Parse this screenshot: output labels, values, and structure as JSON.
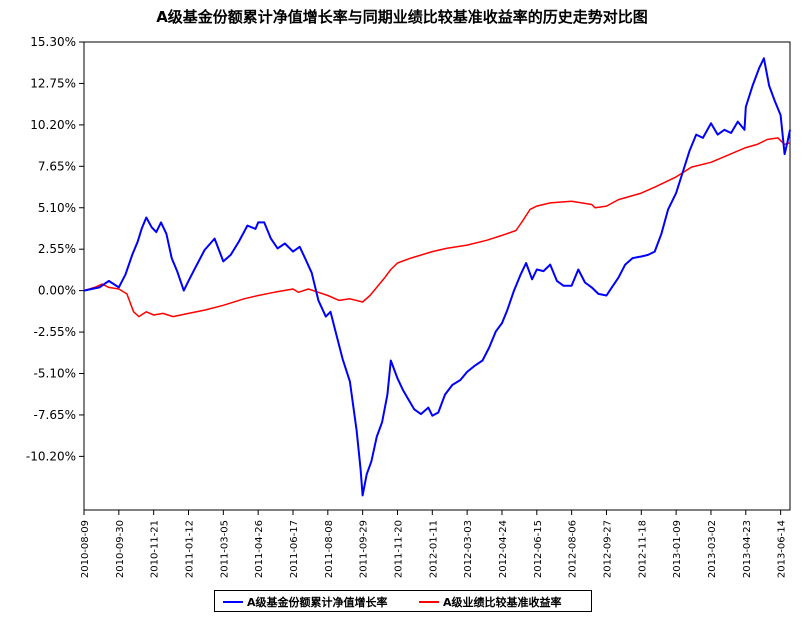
{
  "chart_data": {
    "type": "line",
    "title": "A级基金份额累计净值增长率与同期业绩比较基准收益率的历史走势对比图",
    "xlabel": "",
    "ylabel": "",
    "ylim": [
      -13.5,
      15.3
    ],
    "y_ticks": [
      "15.30%",
      "12.75%",
      "10.20%",
      "7.65%",
      "5.10%",
      "2.55%",
      "0.00%",
      "-2.55%",
      "-5.10%",
      "-7.65%",
      "-10.20%"
    ],
    "y_tick_values": [
      15.3,
      12.75,
      10.2,
      7.65,
      5.1,
      2.55,
      0,
      -2.55,
      -5.1,
      -7.65,
      -10.2
    ],
    "x_range": [
      "2010-08-09",
      "2013-06-28"
    ],
    "x_ticks": [
      "2010-08-09",
      "2010-09-30",
      "2010-11-21",
      "2011-01-12",
      "2011-03-05",
      "2011-04-26",
      "2011-06-17",
      "2011-08-08",
      "2011-09-29",
      "2011-11-20",
      "2012-01-11",
      "2012-03-03",
      "2012-04-24",
      "2012-06-15",
      "2012-08-06",
      "2012-09-27",
      "2012-11-18",
      "2013-01-09",
      "2013-03-02",
      "2013-04-23",
      "2013-06-14"
    ],
    "grid": false,
    "legend_position": "bottom",
    "series": [
      {
        "name": "A级基金份额累计净值增长率",
        "color": "#0000ff",
        "points": [
          [
            "2010-08-09",
            0.0
          ],
          [
            "2010-09-01",
            0.2
          ],
          [
            "2010-09-15",
            0.6
          ],
          [
            "2010-09-30",
            0.2
          ],
          [
            "2010-10-10",
            1.0
          ],
          [
            "2010-10-20",
            2.2
          ],
          [
            "2010-10-28",
            3.0
          ],
          [
            "2010-11-03",
            3.8
          ],
          [
            "2010-11-10",
            4.5
          ],
          [
            "2010-11-18",
            3.9
          ],
          [
            "2010-11-25",
            3.6
          ],
          [
            "2010-12-02",
            4.2
          ],
          [
            "2010-12-10",
            3.5
          ],
          [
            "2010-12-18",
            2.0
          ],
          [
            "2010-12-26",
            1.2
          ],
          [
            "2011-01-05",
            0.0
          ],
          [
            "2011-01-12",
            0.6
          ],
          [
            "2011-01-22",
            1.4
          ],
          [
            "2011-02-05",
            2.5
          ],
          [
            "2011-02-20",
            3.2
          ],
          [
            "2011-03-05",
            1.8
          ],
          [
            "2011-03-16",
            2.2
          ],
          [
            "2011-03-28",
            3.0
          ],
          [
            "2011-04-10",
            4.0
          ],
          [
            "2011-04-22",
            3.8
          ],
          [
            "2011-04-26",
            4.2
          ],
          [
            "2011-05-05",
            4.2
          ],
          [
            "2011-05-15",
            3.2
          ],
          [
            "2011-05-25",
            2.6
          ],
          [
            "2011-06-05",
            2.9
          ],
          [
            "2011-06-17",
            2.4
          ],
          [
            "2011-06-27",
            2.7
          ],
          [
            "2011-07-05",
            2.0
          ],
          [
            "2011-07-15",
            1.1
          ],
          [
            "2011-07-25",
            -0.6
          ],
          [
            "2011-08-05",
            -1.6
          ],
          [
            "2011-08-12",
            -1.3
          ],
          [
            "2011-08-20",
            -2.6
          ],
          [
            "2011-08-30",
            -4.2
          ],
          [
            "2011-09-10",
            -5.6
          ],
          [
            "2011-09-20",
            -8.6
          ],
          [
            "2011-09-26",
            -11.0
          ],
          [
            "2011-09-29",
            -12.6
          ],
          [
            "2011-10-05",
            -11.3
          ],
          [
            "2011-10-12",
            -10.5
          ],
          [
            "2011-10-20",
            -9.0
          ],
          [
            "2011-10-28",
            -8.1
          ],
          [
            "2011-11-05",
            -6.4
          ],
          [
            "2011-11-10",
            -4.3
          ],
          [
            "2011-11-20",
            -5.4
          ],
          [
            "2011-11-28",
            -6.1
          ],
          [
            "2011-12-05",
            -6.6
          ],
          [
            "2011-12-15",
            -7.3
          ],
          [
            "2011-12-25",
            -7.6
          ],
          [
            "2012-01-05",
            -7.2
          ],
          [
            "2012-01-11",
            -7.7
          ],
          [
            "2012-01-20",
            -7.5
          ],
          [
            "2012-01-30",
            -6.4
          ],
          [
            "2012-02-10",
            -5.8
          ],
          [
            "2012-02-22",
            -5.5
          ],
          [
            "2012-03-03",
            -5.0
          ],
          [
            "2012-03-15",
            -4.6
          ],
          [
            "2012-03-26",
            -4.3
          ],
          [
            "2012-04-05",
            -3.5
          ],
          [
            "2012-04-15",
            -2.5
          ],
          [
            "2012-04-24",
            -2.0
          ],
          [
            "2012-05-02",
            -1.2
          ],
          [
            "2012-05-12",
            0.0
          ],
          [
            "2012-05-22",
            1.0
          ],
          [
            "2012-05-30",
            1.7
          ],
          [
            "2012-06-08",
            0.7
          ],
          [
            "2012-06-15",
            1.3
          ],
          [
            "2012-06-25",
            1.2
          ],
          [
            "2012-07-05",
            1.6
          ],
          [
            "2012-07-15",
            0.6
          ],
          [
            "2012-07-25",
            0.3
          ],
          [
            "2012-08-06",
            0.3
          ],
          [
            "2012-08-16",
            1.3
          ],
          [
            "2012-08-26",
            0.5
          ],
          [
            "2012-09-05",
            0.2
          ],
          [
            "2012-09-15",
            -0.2
          ],
          [
            "2012-09-27",
            -0.3
          ],
          [
            "2012-10-05",
            0.2
          ],
          [
            "2012-10-15",
            0.8
          ],
          [
            "2012-10-25",
            1.6
          ],
          [
            "2012-11-05",
            2.0
          ],
          [
            "2012-11-18",
            2.1
          ],
          [
            "2012-11-28",
            2.2
          ],
          [
            "2012-12-08",
            2.4
          ],
          [
            "2012-12-18",
            3.5
          ],
          [
            "2012-12-28",
            5.0
          ],
          [
            "2013-01-09",
            6.0
          ],
          [
            "2013-01-19",
            7.3
          ],
          [
            "2013-01-29",
            8.6
          ],
          [
            "2013-02-08",
            9.6
          ],
          [
            "2013-02-18",
            9.4
          ],
          [
            "2013-03-02",
            10.3
          ],
          [
            "2013-03-12",
            9.6
          ],
          [
            "2013-03-22",
            9.9
          ],
          [
            "2013-04-01",
            9.7
          ],
          [
            "2013-04-11",
            10.4
          ],
          [
            "2013-04-21",
            9.9
          ],
          [
            "2013-04-23",
            11.3
          ],
          [
            "2013-05-03",
            12.6
          ],
          [
            "2013-05-13",
            13.7
          ],
          [
            "2013-05-20",
            14.3
          ],
          [
            "2013-05-28",
            12.6
          ],
          [
            "2013-06-05",
            11.7
          ],
          [
            "2013-06-14",
            10.8
          ],
          [
            "2013-06-20",
            8.4
          ],
          [
            "2013-06-24",
            9.1
          ],
          [
            "2013-06-28",
            9.9
          ]
        ]
      },
      {
        "name": "A级业绩比较基准收益率",
        "color": "#ff0000",
        "points": [
          [
            "2010-08-09",
            0.0
          ],
          [
            "2010-08-25",
            0.2
          ],
          [
            "2010-09-05",
            0.4
          ],
          [
            "2010-09-15",
            0.2
          ],
          [
            "2010-09-30",
            0.1
          ],
          [
            "2010-10-12",
            -0.2
          ],
          [
            "2010-10-22",
            -1.3
          ],
          [
            "2010-10-30",
            -1.6
          ],
          [
            "2010-11-10",
            -1.3
          ],
          [
            "2010-11-21",
            -1.5
          ],
          [
            "2010-12-05",
            -1.4
          ],
          [
            "2010-12-20",
            -1.6
          ],
          [
            "2011-01-12",
            -1.4
          ],
          [
            "2011-02-05",
            -1.2
          ],
          [
            "2011-03-05",
            -0.9
          ],
          [
            "2011-04-05",
            -0.5
          ],
          [
            "2011-04-26",
            -0.3
          ],
          [
            "2011-05-20",
            -0.1
          ],
          [
            "2011-06-17",
            0.1
          ],
          [
            "2011-06-25",
            -0.1
          ],
          [
            "2011-07-10",
            0.1
          ],
          [
            "2011-07-25",
            -0.1
          ],
          [
            "2011-08-08",
            -0.3
          ],
          [
            "2011-08-25",
            -0.6
          ],
          [
            "2011-09-10",
            -0.5
          ],
          [
            "2011-09-29",
            -0.7
          ],
          [
            "2011-10-10",
            -0.3
          ],
          [
            "2011-10-20",
            0.2
          ],
          [
            "2011-11-01",
            0.8
          ],
          [
            "2011-11-10",
            1.3
          ],
          [
            "2011-11-20",
            1.7
          ],
          [
            "2011-12-10",
            2.0
          ],
          [
            "2012-01-11",
            2.4
          ],
          [
            "2012-02-01",
            2.6
          ],
          [
            "2012-03-03",
            2.8
          ],
          [
            "2012-04-01",
            3.1
          ],
          [
            "2012-04-24",
            3.4
          ],
          [
            "2012-05-15",
            3.7
          ],
          [
            "2012-05-25",
            4.3
          ],
          [
            "2012-06-05",
            5.0
          ],
          [
            "2012-06-15",
            5.2
          ],
          [
            "2012-07-05",
            5.4
          ],
          [
            "2012-08-06",
            5.5
          ],
          [
            "2012-09-05",
            5.3
          ],
          [
            "2012-09-10",
            5.1
          ],
          [
            "2012-09-27",
            5.2
          ],
          [
            "2012-10-15",
            5.6
          ],
          [
            "2012-11-01",
            5.8
          ],
          [
            "2012-11-18",
            6.0
          ],
          [
            "2012-12-10",
            6.4
          ],
          [
            "2013-01-09",
            7.0
          ],
          [
            "2013-02-01",
            7.6
          ],
          [
            "2013-03-02",
            7.9
          ],
          [
            "2013-03-25",
            8.3
          ],
          [
            "2013-04-23",
            8.8
          ],
          [
            "2013-05-10",
            9.0
          ],
          [
            "2013-05-25",
            9.3
          ],
          [
            "2013-06-10",
            9.4
          ],
          [
            "2013-06-20",
            9.0
          ],
          [
            "2013-06-28",
            9.1
          ]
        ]
      }
    ]
  }
}
